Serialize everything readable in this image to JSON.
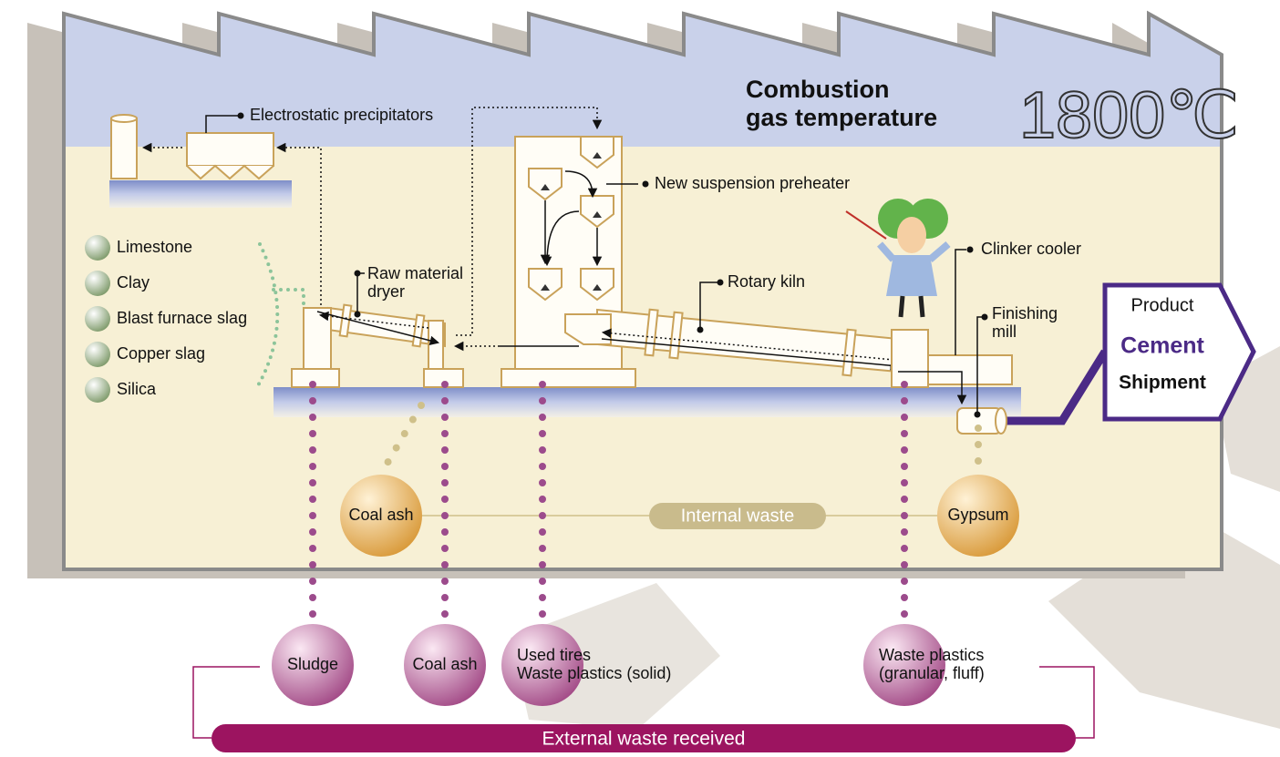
{
  "title": {
    "line1": "Combustion",
    "line2": "gas temperature",
    "temperature": "1800℃"
  },
  "equipment": {
    "precipitators": "Electrostatic precipitators",
    "preheater": "New suspension preheater",
    "dryer": [
      "Raw material",
      "dryer"
    ],
    "kiln": "Rotary kiln",
    "cooler": "Clinker cooler",
    "mill": [
      "Finishing",
      "mill"
    ]
  },
  "raw_materials": [
    "Limestone",
    "Clay",
    "Blast furnace slag",
    "Copper slag",
    "Silica"
  ],
  "product": {
    "label": "Product",
    "name": "Cement",
    "shipment": "Shipment"
  },
  "internal_waste": {
    "label": "Internal waste",
    "sources": [
      "Coal ash",
      "Gypsum"
    ]
  },
  "external_waste": {
    "label": "External waste received",
    "sources": [
      [
        "Sludge"
      ],
      [
        "Coal ash"
      ],
      [
        "Used tires",
        "Waste plastics (solid)"
      ],
      [
        "Waste plastics",
        "(granular, fluff)"
      ]
    ]
  }
}
